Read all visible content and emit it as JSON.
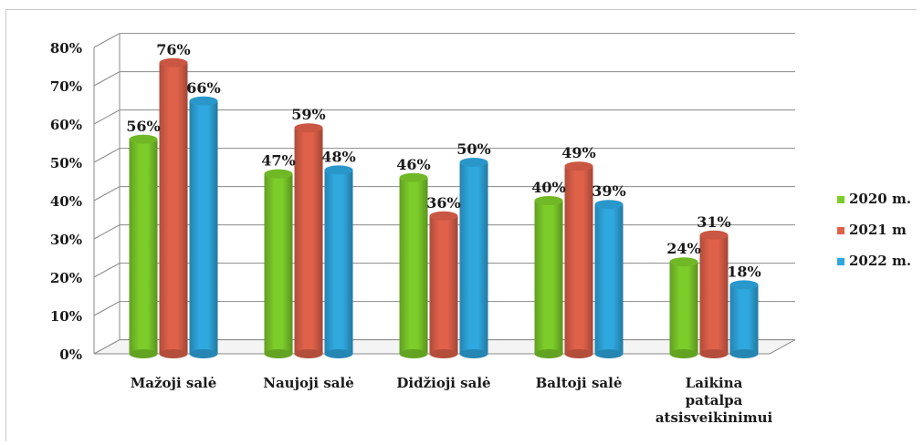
{
  "chart_data": {
    "type": "bar",
    "categories": [
      "Mažoji salė",
      "Naujoji salė",
      "Didžioji salė",
      "Baltoji salė",
      "Laikina patalpa atsisveikinimui"
    ],
    "category_lines": [
      [
        "Mažoji salė"
      ],
      [
        "Naujoji salė"
      ],
      [
        "Didžioji salė"
      ],
      [
        "Baltoji salė"
      ],
      [
        "Laikina",
        "patalpa",
        "atsisveikinimui"
      ]
    ],
    "series": [
      {
        "name": "2020 m.",
        "values": [
          56,
          47,
          46,
          40,
          24
        ],
        "labels": [
          "56%",
          "47%",
          "46%",
          "40%",
          "24%"
        ],
        "color": "#7ccc2a"
      },
      {
        "name": "2021 m",
        "values": [
          76,
          59,
          36,
          49,
          31
        ],
        "labels": [
          "76%",
          "59%",
          "36%",
          "49%",
          "31%"
        ],
        "color": "#e0614a"
      },
      {
        "name": "2022 m.",
        "values": [
          66,
          48,
          50,
          39,
          18
        ],
        "labels": [
          "66%",
          "48%",
          "50%",
          "39%",
          "18%"
        ],
        "color": "#2fa8e0"
      }
    ],
    "yticks": [
      0,
      10,
      20,
      30,
      40,
      50,
      60,
      70,
      80
    ],
    "ytick_labels": [
      "0%",
      "10%",
      "20%",
      "30%",
      "40%",
      "50%",
      "60%",
      "70%",
      "80%"
    ],
    "ylim": [
      0,
      80
    ],
    "grid": true,
    "legend_position": "right",
    "title": "",
    "xlabel": "",
    "ylabel": ""
  }
}
